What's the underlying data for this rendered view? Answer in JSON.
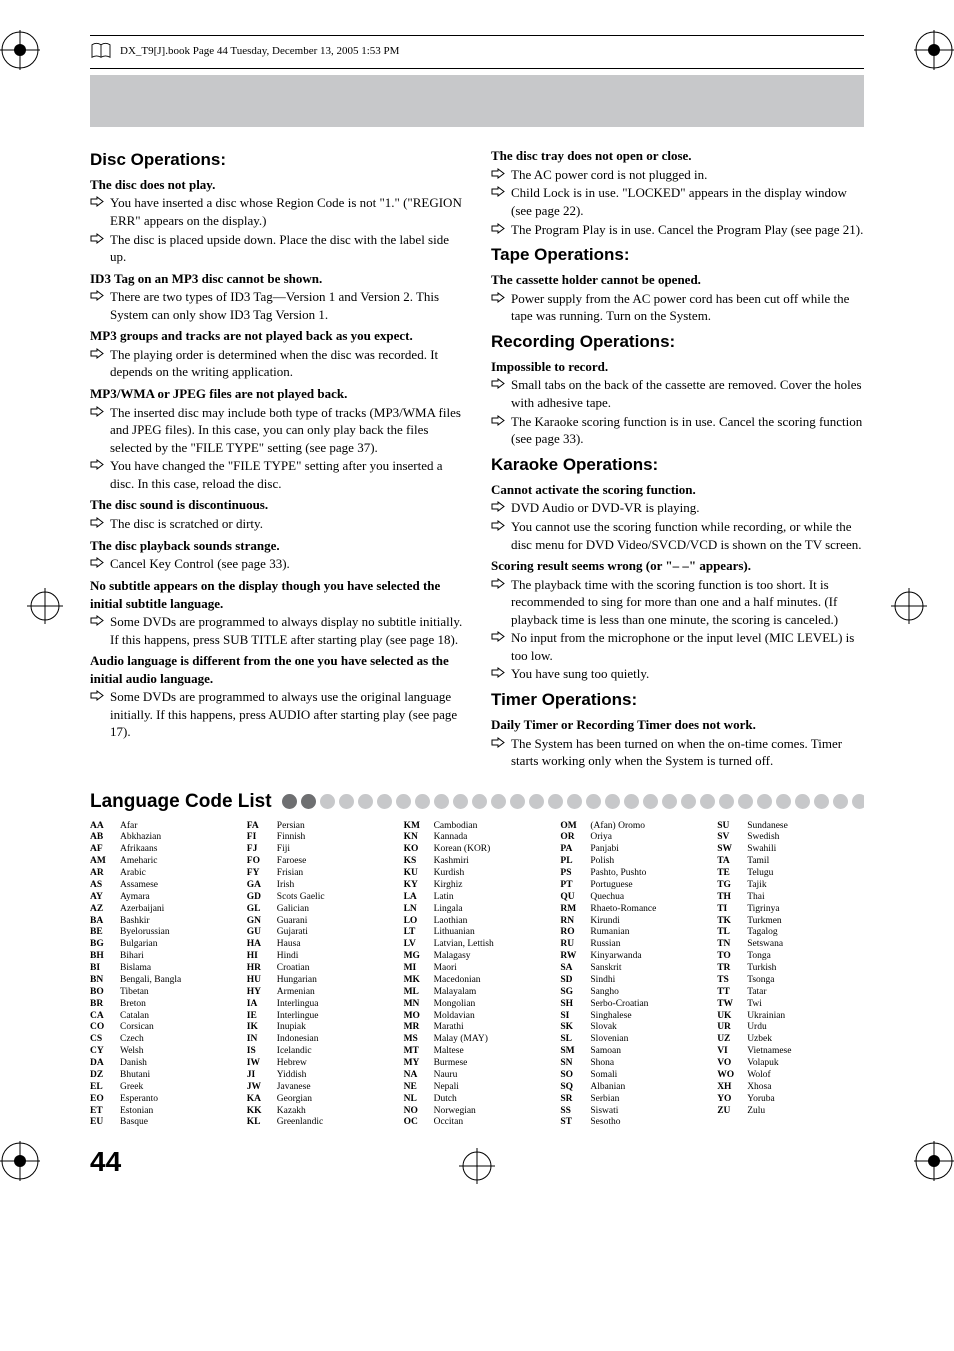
{
  "header": {
    "fileinfo": "DX_T9[J].book  Page 44  Tuesday, December 13, 2005  1:53 PM"
  },
  "page_number": "44",
  "colors": {
    "grey_band": "#c7c8ca",
    "dot_dark": "#6e6f71",
    "dot_light": "#c7c8ca"
  },
  "left": {
    "disc_ops": {
      "title": "Disc Operations:",
      "items": [
        {
          "h": "The disc does not play.",
          "b": [
            "You have inserted a disc whose Region Code is not \"1.\" (\"REGION ERR\" appears on the display.)",
            "The disc is placed upside down. Place the disc with the label side up."
          ]
        },
        {
          "h": "ID3 Tag on an MP3 disc cannot be shown.",
          "b": [
            "There are two types of ID3 Tag—Version 1 and Version 2. This System can only show ID3 Tag Version 1."
          ]
        },
        {
          "h": "MP3 groups and tracks are not played back as you expect.",
          "b": [
            "The playing order is determined when the disc was recorded. It depends on the writing application."
          ]
        },
        {
          "h": "MP3/WMA or JPEG files are not played back.",
          "b": [
            "The inserted disc may include both type of tracks (MP3/WMA files and JPEG files). In this case, you can only play back the files selected by the \"FILE TYPE\" setting (see page 37).",
            "You have changed the \"FILE TYPE\" setting after you inserted a disc. In this case, reload the disc."
          ]
        },
        {
          "h": "The disc sound is discontinuous.",
          "b": [
            "The disc is scratched or dirty."
          ]
        },
        {
          "h": "The disc playback sounds strange.",
          "b": [
            "Cancel Key Control (see page 33)."
          ]
        },
        {
          "h": "No subtitle appears on the display though you have selected the initial subtitle language.",
          "b": [
            "Some DVDs are programmed to always display no subtitle initially. If this happens, press SUB TITLE after starting play (see page 18)."
          ]
        },
        {
          "h": "Audio language is different from the one you have selected as the initial audio language.",
          "b": [
            "Some DVDs are programmed to always use the original language initially. If this happens, press AUDIO after starting play (see page 17)."
          ]
        }
      ]
    }
  },
  "right": {
    "disc_tray": {
      "h": "The disc tray does not open or close.",
      "b": [
        "The AC power cord is not plugged in.",
        "Child Lock is in use. \"LOCKED\" appears in the display window (see page 22).",
        "The Program Play is in use. Cancel the Program Play (see page 21)."
      ]
    },
    "tape": {
      "title": "Tape Operations:",
      "items": [
        {
          "h": "The cassette holder cannot be opened.",
          "b": [
            "Power supply from the AC power cord has been cut off while the tape was running. Turn on the System."
          ]
        }
      ]
    },
    "recording": {
      "title": "Recording Operations:",
      "items": [
        {
          "h": "Impossible to record.",
          "b": [
            "Small tabs on the back of the cassette are removed. Cover the holes with adhesive tape.",
            "The Karaoke scoring function is in use. Cancel the scoring function (see page 33)."
          ]
        }
      ]
    },
    "karaoke": {
      "title": "Karaoke Operations:",
      "items": [
        {
          "h": "Cannot activate the scoring function.",
          "b": [
            "DVD Audio or DVD-VR is playing.",
            "You cannot use the scoring function while recording, or while the disc menu for DVD Video/SVCD/VCD is shown on the TV screen."
          ]
        },
        {
          "h": "Scoring result seems wrong (or \"– –\" appears).",
          "b": [
            "The playback time with the scoring function is too short. It is recommended to sing for more than one and a half minutes. (If playback time is less than one minute, the scoring is canceled.)",
            "No input from the microphone or the input level (MIC LEVEL) is too low.",
            "You have sung too quietly."
          ]
        }
      ]
    },
    "timer": {
      "title": "Timer Operations:",
      "items": [
        {
          "h": "Daily Timer or Recording Timer does not work.",
          "b": [
            "The System has been turned on when the on-time comes. Timer starts working only when the System is turned off."
          ]
        }
      ]
    }
  },
  "lang_title": "Language Code List",
  "languages": [
    [
      [
        "AA",
        "Afar"
      ],
      [
        "AB",
        "Abkhazian"
      ],
      [
        "AF",
        "Afrikaans"
      ],
      [
        "AM",
        "Ameharic"
      ],
      [
        "AR",
        "Arabic"
      ],
      [
        "AS",
        "Assamese"
      ],
      [
        "AY",
        "Aymara"
      ],
      [
        "AZ",
        "Azerbaijani"
      ],
      [
        "BA",
        "Bashkir"
      ],
      [
        "BE",
        "Byelorussian"
      ],
      [
        "BG",
        "Bulgarian"
      ],
      [
        "BH",
        "Bihari"
      ],
      [
        "BI",
        "Bislama"
      ],
      [
        "BN",
        "Bengali, Bangla"
      ],
      [
        "BO",
        "Tibetan"
      ],
      [
        "BR",
        "Breton"
      ],
      [
        "CA",
        "Catalan"
      ],
      [
        "CO",
        "Corsican"
      ],
      [
        "CS",
        "Czech"
      ],
      [
        "CY",
        "Welsh"
      ],
      [
        "DA",
        "Danish"
      ],
      [
        "DZ",
        "Bhutani"
      ],
      [
        "EL",
        "Greek"
      ],
      [
        "EO",
        "Esperanto"
      ],
      [
        "ET",
        "Estonian"
      ],
      [
        "EU",
        "Basque"
      ]
    ],
    [
      [
        "FA",
        "Persian"
      ],
      [
        "FI",
        "Finnish"
      ],
      [
        "FJ",
        "Fiji"
      ],
      [
        "FO",
        "Faroese"
      ],
      [
        "FY",
        "Frisian"
      ],
      [
        "GA",
        "Irish"
      ],
      [
        "GD",
        "Scots Gaelic"
      ],
      [
        "GL",
        "Galician"
      ],
      [
        "GN",
        "Guarani"
      ],
      [
        "GU",
        "Gujarati"
      ],
      [
        "HA",
        "Hausa"
      ],
      [
        "HI",
        "Hindi"
      ],
      [
        "HR",
        "Croatian"
      ],
      [
        "HU",
        "Hungarian"
      ],
      [
        "HY",
        "Armenian"
      ],
      [
        "IA",
        "Interlingua"
      ],
      [
        "IE",
        "Interlingue"
      ],
      [
        "IK",
        "Inupiak"
      ],
      [
        "IN",
        "Indonesian"
      ],
      [
        "IS",
        "Icelandic"
      ],
      [
        "IW",
        "Hebrew"
      ],
      [
        "JI",
        "Yiddish"
      ],
      [
        "JW",
        "Javanese"
      ],
      [
        "KA",
        "Georgian"
      ],
      [
        "KK",
        "Kazakh"
      ],
      [
        "KL",
        "Greenlandic"
      ]
    ],
    [
      [
        "KM",
        "Cambodian"
      ],
      [
        "KN",
        "Kannada"
      ],
      [
        "KO",
        "Korean (KOR)"
      ],
      [
        "KS",
        "Kashmiri"
      ],
      [
        "KU",
        "Kurdish"
      ],
      [
        "KY",
        "Kirghiz"
      ],
      [
        "LA",
        "Latin"
      ],
      [
        "LN",
        "Lingala"
      ],
      [
        "LO",
        "Laothian"
      ],
      [
        "LT",
        "Lithuanian"
      ],
      [
        "LV",
        "Latvian, Lettish"
      ],
      [
        "MG",
        "Malagasy"
      ],
      [
        "MI",
        "Maori"
      ],
      [
        "MK",
        "Macedonian"
      ],
      [
        "ML",
        "Malayalam"
      ],
      [
        "MN",
        "Mongolian"
      ],
      [
        "MO",
        "Moldavian"
      ],
      [
        "MR",
        "Marathi"
      ],
      [
        "MS",
        "Malay (MAY)"
      ],
      [
        "MT",
        "Maltese"
      ],
      [
        "MY",
        "Burmese"
      ],
      [
        "NA",
        "Nauru"
      ],
      [
        "NE",
        "Nepali"
      ],
      [
        "NL",
        "Dutch"
      ],
      [
        "NO",
        "Norwegian"
      ],
      [
        "OC",
        "Occitan"
      ]
    ],
    [
      [
        "OM",
        "(Afan) Oromo"
      ],
      [
        "OR",
        "Oriya"
      ],
      [
        "PA",
        "Panjabi"
      ],
      [
        "PL",
        "Polish"
      ],
      [
        "PS",
        "Pashto, Pushto"
      ],
      [
        "PT",
        "Portuguese"
      ],
      [
        "QU",
        "Quechua"
      ],
      [
        "RM",
        "Rhaeto-Romance"
      ],
      [
        "RN",
        "Kirundi"
      ],
      [
        "RO",
        "Rumanian"
      ],
      [
        "RU",
        "Russian"
      ],
      [
        "RW",
        "Kinyarwanda"
      ],
      [
        "SA",
        "Sanskrit"
      ],
      [
        "SD",
        "Sindhi"
      ],
      [
        "SG",
        "Sangho"
      ],
      [
        "SH",
        "Serbo-Croatian"
      ],
      [
        "SI",
        "Singhalese"
      ],
      [
        "SK",
        "Slovak"
      ],
      [
        "SL",
        "Slovenian"
      ],
      [
        "SM",
        "Samoan"
      ],
      [
        "SN",
        "Shona"
      ],
      [
        "SO",
        "Somali"
      ],
      [
        "SQ",
        "Albanian"
      ],
      [
        "SR",
        "Serbian"
      ],
      [
        "SS",
        "Siswati"
      ],
      [
        "ST",
        "Sesotho"
      ]
    ],
    [
      [
        "SU",
        "Sundanese"
      ],
      [
        "SV",
        "Swedish"
      ],
      [
        "SW",
        "Swahili"
      ],
      [
        "TA",
        "Tamil"
      ],
      [
        "TE",
        "Telugu"
      ],
      [
        "TG",
        "Tajik"
      ],
      [
        "TH",
        "Thai"
      ],
      [
        "TI",
        "Tigrinya"
      ],
      [
        "TK",
        "Turkmen"
      ],
      [
        "TL",
        "Tagalog"
      ],
      [
        "TN",
        "Setswana"
      ],
      [
        "TO",
        "Tonga"
      ],
      [
        "TR",
        "Turkish"
      ],
      [
        "TS",
        "Tsonga"
      ],
      [
        "TT",
        "Tatar"
      ],
      [
        "TW",
        "Twi"
      ],
      [
        "UK",
        "Ukrainian"
      ],
      [
        "UR",
        "Urdu"
      ],
      [
        "UZ",
        "Uzbek"
      ],
      [
        "VI",
        "Vietnamese"
      ],
      [
        "VO",
        "Volapuk"
      ],
      [
        "WO",
        "Wolof"
      ],
      [
        "XH",
        "Xhosa"
      ],
      [
        "YO",
        "Yoruba"
      ],
      [
        "ZU",
        "Zulu"
      ]
    ]
  ]
}
